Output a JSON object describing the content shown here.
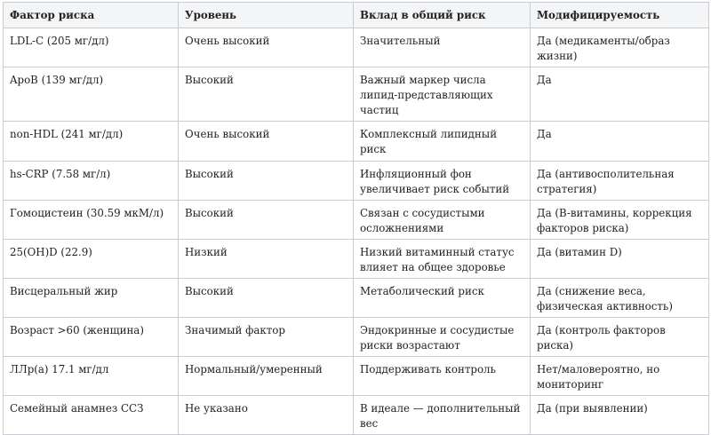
{
  "table": {
    "headers": [
      "Фактор риска",
      "Уровень",
      "Вклад в общий риск",
      "Модифицируемость"
    ],
    "rows": [
      [
        "LDL-C (205 мг/дл)",
        "Очень высокий",
        "Значительный",
        "Да (медикаменты/образ жизни)"
      ],
      [
        "ApoB (139 мг/дл)",
        "Высокий",
        "Важный маркер числа липид-представляющих частиц",
        "Да"
      ],
      [
        "non-HDL (241 мг/дл)",
        "Очень высокий",
        "Комплексный липидный риск",
        "Да"
      ],
      [
        "hs-CRP (7.58 мг/л)",
        "Высокий",
        "Инфляционный фон увеличивает риск событий",
        "Да (антивосполительная стратегия)"
      ],
      [
        "Гомоцистеин (30.59 мкМ/л)",
        "Высокий",
        "Связан с сосудистыми осложнениями",
        "Да (B-витамины, коррекция факторов риска)"
      ],
      [
        "25(OH)D (22.9)",
        "Низкий",
        "Низкий витаминный статус влияет на общее здоровье",
        "Да (витамин D)"
      ],
      [
        "Висцеральный жир",
        "Высокий",
        "Метаболический риск",
        "Да (снижение веса, физическая активность)"
      ],
      [
        "Возраст >60 (женщина)",
        "Значимый фактор",
        "Эндокринные и сосудистые риски возрастают",
        "Да (контроль факторов риска)"
      ],
      [
        "ЛЛp(a) 17.1 мг/дл",
        "Нормальный/умеренный",
        "Поддерживать контроль",
        "Нет/маловероятно, но мониторинг"
      ],
      [
        "Семейный анамнез ССЗ",
        "Не указано",
        "В идеале — дополнительный вес",
        "Да (при выявлении)"
      ]
    ]
  }
}
